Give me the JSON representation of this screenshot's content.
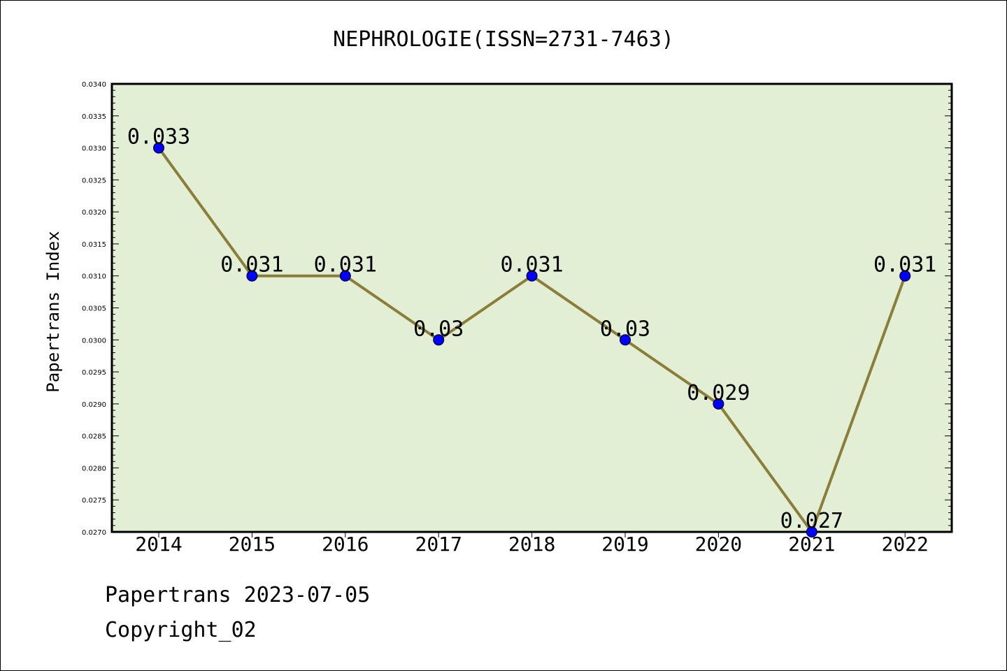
{
  "footer": {
    "line1": "Papertrans 2023-07-05",
    "line2": "Copyright_02"
  },
  "colors": {
    "plot_background": "#e2efd5",
    "line": "#8b7d3a",
    "marker": "#0000ff"
  },
  "chart_data": {
    "type": "line",
    "title": "NEPHROLOGIE(ISSN=2731-7463)",
    "xlabel": "",
    "ylabel": "Papertrans Index",
    "categories": [
      "2014",
      "2015",
      "2016",
      "2017",
      "2018",
      "2019",
      "2020",
      "2021",
      "2022"
    ],
    "values": [
      0.033,
      0.031,
      0.031,
      0.03,
      0.031,
      0.03,
      0.029,
      0.027,
      0.031
    ],
    "data_labels": [
      "0.033",
      "0.031",
      "0.031",
      "0.03",
      "0.031",
      "0.03",
      "0.029",
      "0.027",
      "0.031"
    ],
    "ylim": [
      0.027,
      0.034
    ],
    "yticks": [
      "0.0270",
      "0.0275",
      "0.0280",
      "0.0285",
      "0.0290",
      "0.0295",
      "0.0300",
      "0.0305",
      "0.0310",
      "0.0315",
      "0.0320",
      "0.0325",
      "0.0330",
      "0.0335",
      "0.0340"
    ],
    "grid": false,
    "legend": "none"
  }
}
